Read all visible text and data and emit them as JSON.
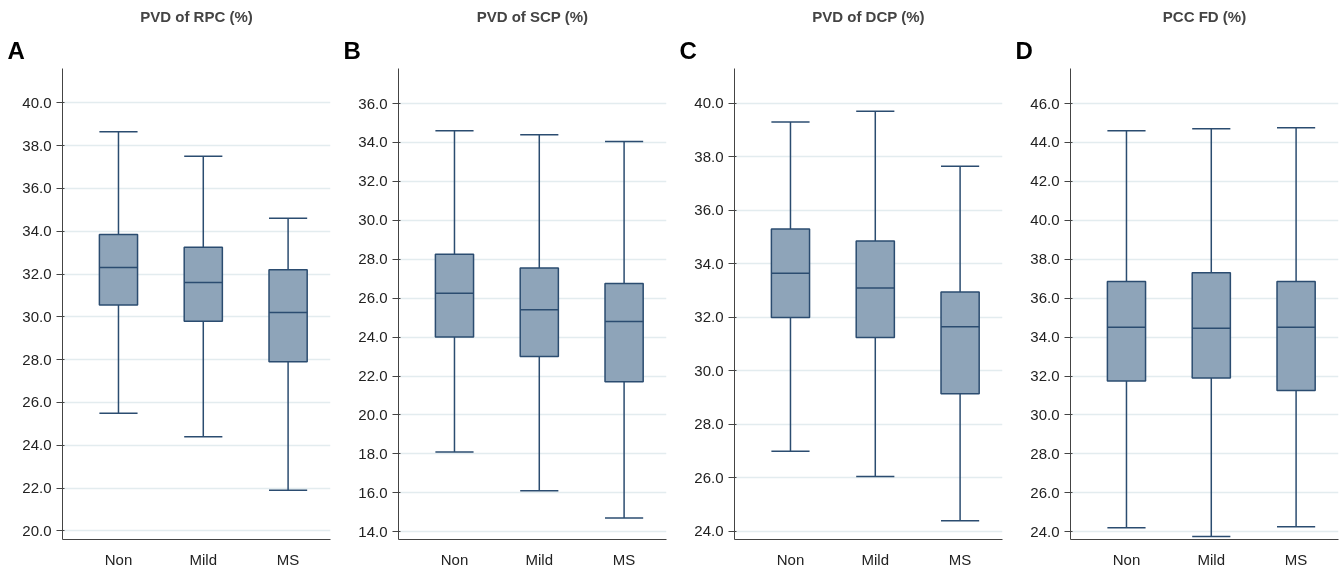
{
  "chart_data": [
    {
      "type": "box",
      "title": "PVD of RPC (%)",
      "annotations": [
        "A"
      ],
      "categories": [
        "Non",
        "Mild",
        "MS"
      ],
      "color": "#8ea4b9",
      "grid": "y",
      "ylim": [
        19.6,
        41.6
      ],
      "yticks": [
        {
          "value": 20,
          "label": "20.0"
        },
        {
          "value": 22,
          "label": "22.0"
        },
        {
          "value": 24,
          "label": "24.0"
        },
        {
          "value": 26,
          "label": "26.0"
        },
        {
          "value": 28,
          "label": "28.0"
        },
        {
          "value": 30,
          "label": "30.0"
        },
        {
          "value": 32,
          "label": "32.0"
        },
        {
          "value": 34,
          "label": "34.0"
        },
        {
          "value": 36,
          "label": "36.0"
        },
        {
          "value": 38,
          "label": "38.0"
        },
        {
          "value": 40,
          "label": "40.0"
        }
      ],
      "boxes": [
        {
          "low": 25.5,
          "q1": 30.55,
          "median": 32.3,
          "q3": 33.85,
          "high": 38.65
        },
        {
          "low": 24.4,
          "q1": 29.8,
          "median": 31.6,
          "q3": 33.25,
          "high": 37.5
        },
        {
          "low": 21.9,
          "q1": 27.9,
          "median": 30.2,
          "q3": 32.2,
          "high": 34.6
        }
      ]
    },
    {
      "type": "box",
      "title": "PVD of SCP (%)",
      "annotations": [
        "B"
      ],
      "categories": [
        "Non",
        "Mild",
        "MS"
      ],
      "color": "#8ea4b9",
      "grid": "y",
      "ylim": [
        13.6,
        37.8
      ],
      "yticks": [
        {
          "value": 14,
          "label": "14.0"
        },
        {
          "value": 16,
          "label": "16.0"
        },
        {
          "value": 18,
          "label": "18.0"
        },
        {
          "value": 20,
          "label": "20.0"
        },
        {
          "value": 22,
          "label": "22.0"
        },
        {
          "value": 24,
          "label": "24.0"
        },
        {
          "value": 26,
          "label": "26.0"
        },
        {
          "value": 28,
          "label": "28.0"
        },
        {
          "value": 30,
          "label": "30.0"
        },
        {
          "value": 32,
          "label": "32.0"
        },
        {
          "value": 34,
          "label": "34.0"
        },
        {
          "value": 36,
          "label": "36.0"
        }
      ],
      "boxes": [
        {
          "low": 18.1,
          "q1": 24.0,
          "median": 26.25,
          "q3": 28.25,
          "high": 34.6
        },
        {
          "low": 16.1,
          "q1": 23.0,
          "median": 25.4,
          "q3": 27.55,
          "high": 34.4
        },
        {
          "low": 14.7,
          "q1": 21.7,
          "median": 24.8,
          "q3": 26.75,
          "high": 34.05
        }
      ]
    },
    {
      "type": "box",
      "title": "PVD of DCP (%)",
      "annotations": [
        "C"
      ],
      "categories": [
        "Non",
        "Mild",
        "MS"
      ],
      "color": "#8ea4b9",
      "grid": "y",
      "ylim": [
        23.7,
        41.3
      ],
      "yticks": [
        {
          "value": 24,
          "label": "24.0"
        },
        {
          "value": 26,
          "label": "26.0"
        },
        {
          "value": 28,
          "label": "28.0"
        },
        {
          "value": 30,
          "label": "30.0"
        },
        {
          "value": 32,
          "label": "32.0"
        },
        {
          "value": 34,
          "label": "34.0"
        },
        {
          "value": 36,
          "label": "36.0"
        },
        {
          "value": 38,
          "label": "38.0"
        },
        {
          "value": 40,
          "label": "40.0"
        }
      ],
      "boxes": [
        {
          "low": 27.0,
          "q1": 32.0,
          "median": 33.65,
          "q3": 35.3,
          "high": 39.3
        },
        {
          "low": 26.05,
          "q1": 31.25,
          "median": 33.1,
          "q3": 34.85,
          "high": 39.7
        },
        {
          "low": 24.4,
          "q1": 29.15,
          "median": 31.65,
          "q3": 32.95,
          "high": 37.65
        }
      ]
    },
    {
      "type": "box",
      "title": "PCC FD (%)",
      "annotations": [
        "D"
      ],
      "categories": [
        "Non",
        "Mild",
        "MS"
      ],
      "color": "#8ea4b9",
      "grid": "y",
      "ylim": [
        23.6,
        47.8
      ],
      "yticks": [
        {
          "value": 24,
          "label": "24.0"
        },
        {
          "value": 26,
          "label": "26.0"
        },
        {
          "value": 28,
          "label": "28.0"
        },
        {
          "value": 30,
          "label": "30.0"
        },
        {
          "value": 32,
          "label": "32.0"
        },
        {
          "value": 34,
          "label": "34.0"
        },
        {
          "value": 36,
          "label": "36.0"
        },
        {
          "value": 38,
          "label": "38.0"
        },
        {
          "value": 40,
          "label": "40.0"
        },
        {
          "value": 42,
          "label": "42.0"
        },
        {
          "value": 44,
          "label": "44.0"
        },
        {
          "value": 46,
          "label": "46.0"
        }
      ],
      "boxes": [
        {
          "low": 24.2,
          "q1": 31.75,
          "median": 34.5,
          "q3": 36.85,
          "high": 44.6
        },
        {
          "low": 23.75,
          "q1": 31.9,
          "median": 34.45,
          "q3": 37.3,
          "high": 44.7
        },
        {
          "low": 24.25,
          "q1": 31.25,
          "median": 34.5,
          "q3": 36.85,
          "high": 44.75
        }
      ]
    }
  ]
}
